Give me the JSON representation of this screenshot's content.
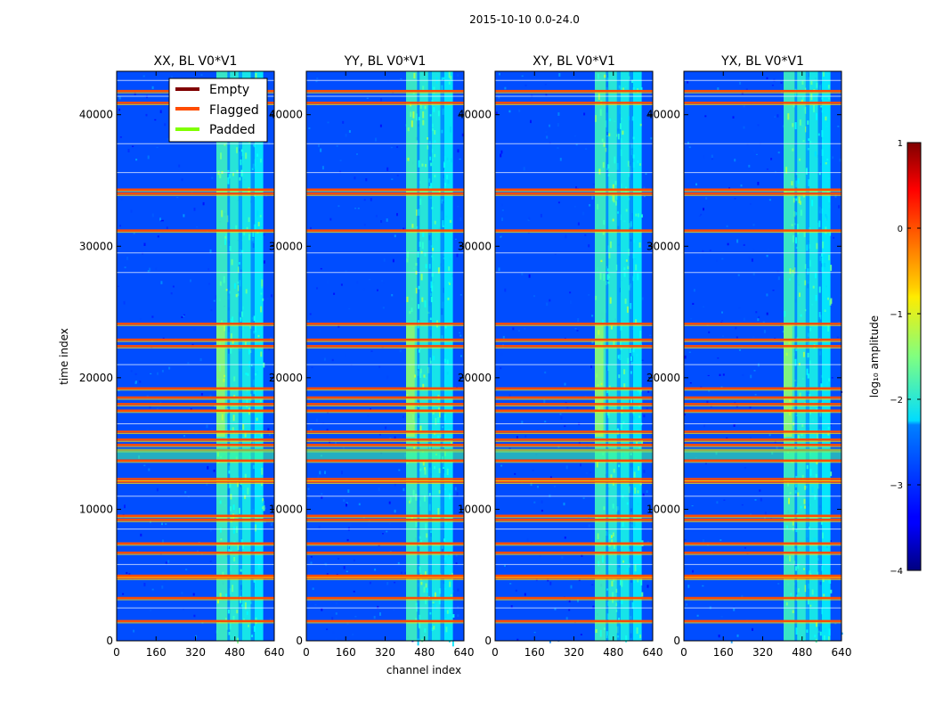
{
  "figure": {
    "suptitle": "2015-10-10 0.0-24.0"
  },
  "chart_data": {
    "type": "heatmap",
    "xlabel": "channel index",
    "ylabel": "time index",
    "xlim": [
      0,
      640
    ],
    "ylim": [
      0,
      43300
    ],
    "xticks": [
      0,
      160,
      320,
      480,
      640
    ],
    "yticks": [
      0,
      10000,
      20000,
      30000,
      40000
    ],
    "panels": [
      {
        "title": "XX, BL V0*V1",
        "show_legend": true
      },
      {
        "title": "YY, BL V0*V1"
      },
      {
        "title": "XY, BL V0*V1"
      },
      {
        "title": "YX, BL V0*V1"
      }
    ],
    "colorbar": {
      "label": "log₁₀ amplitude",
      "range": [
        -4,
        1
      ],
      "ticks": [
        1,
        0,
        -1,
        -2,
        -3,
        -4
      ],
      "tick_labels": [
        "1",
        "0",
        "−1",
        "−2",
        "−3",
        "−4"
      ]
    },
    "legend": [
      {
        "label": "Empty",
        "color": "#800000"
      },
      {
        "label": "Flagged",
        "color": "#ff4d00"
      },
      {
        "label": "Padded",
        "color": "#80ff00"
      }
    ],
    "flagged_rows": [
      1500,
      3250,
      4800,
      4950,
      6700,
      7400,
      9200,
      9500,
      12100,
      12300,
      13700,
      14500,
      14900,
      15300,
      15900,
      17500,
      18000,
      18500,
      19200,
      22400,
      22900,
      24100,
      31200,
      34000,
      34300,
      40900,
      41800
    ],
    "background_level": -3.0,
    "bright_channels": [
      {
        "start": 405,
        "end": 450,
        "level": -1.8
      },
      {
        "start": 450,
        "end": 460,
        "level": -2.6
      },
      {
        "start": 460,
        "end": 495,
        "level": -1.9
      },
      {
        "start": 495,
        "end": 510,
        "level": -2.5
      },
      {
        "start": 510,
        "end": 545,
        "level": -2.0
      },
      {
        "start": 545,
        "end": 560,
        "level": -2.6
      },
      {
        "start": 560,
        "end": 595,
        "level": -2.1
      }
    ]
  }
}
